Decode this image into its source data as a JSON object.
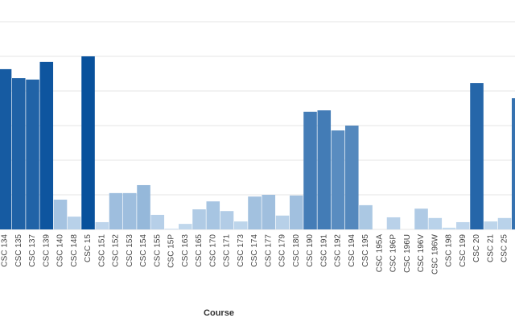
{
  "chart_data": {
    "type": "bar",
    "x_label": "Course",
    "categories": [
      "CSC 134",
      "CSC 135",
      "CSC 137",
      "CSC 139",
      "CSC 140",
      "CSC 148",
      "CSC 15",
      "CSC 151",
      "CSC 152",
      "CSC 153",
      "CSC 154",
      "CSC 155",
      "CSC 15P",
      "CSC 163",
      "CSC 165",
      "CSC 170",
      "CSC 171",
      "CSC 173",
      "CSC 174",
      "CSC 177",
      "CSC 179",
      "CSC 180",
      "CSC 190",
      "CSC 191",
      "CSC 192",
      "CSC 194",
      "CSC 195",
      "CSC 195A",
      "CSC 196P",
      "CSC 196U",
      "CSC 196V",
      "CSC 196W",
      "CSC 198",
      "CSC 199",
      "CSC 20",
      "CSC 21",
      "CSC 25",
      null
    ],
    "values": [
      4.63,
      4.37,
      4.33,
      4.84,
      0.86,
      0.37,
      5.0,
      0.21,
      1.05,
      1.05,
      1.28,
      0.42,
      0.02,
      0.16,
      0.58,
      0.81,
      0.53,
      0.23,
      0.95,
      1.0,
      0.4,
      0.98,
      3.4,
      3.44,
      2.86,
      3.0,
      0.7,
      0,
      0.35,
      0,
      0.6,
      0.33,
      0.05,
      0.21,
      4.23,
      0.23,
      0.33,
      3.79
    ],
    "color_scale": [
      "#c6dbef",
      "#08519c"
    ],
    "ylim": [
      0,
      6.6
    ],
    "yticks": [
      0,
      1,
      2,
      3,
      4,
      5,
      6
    ],
    "grid": true
  }
}
